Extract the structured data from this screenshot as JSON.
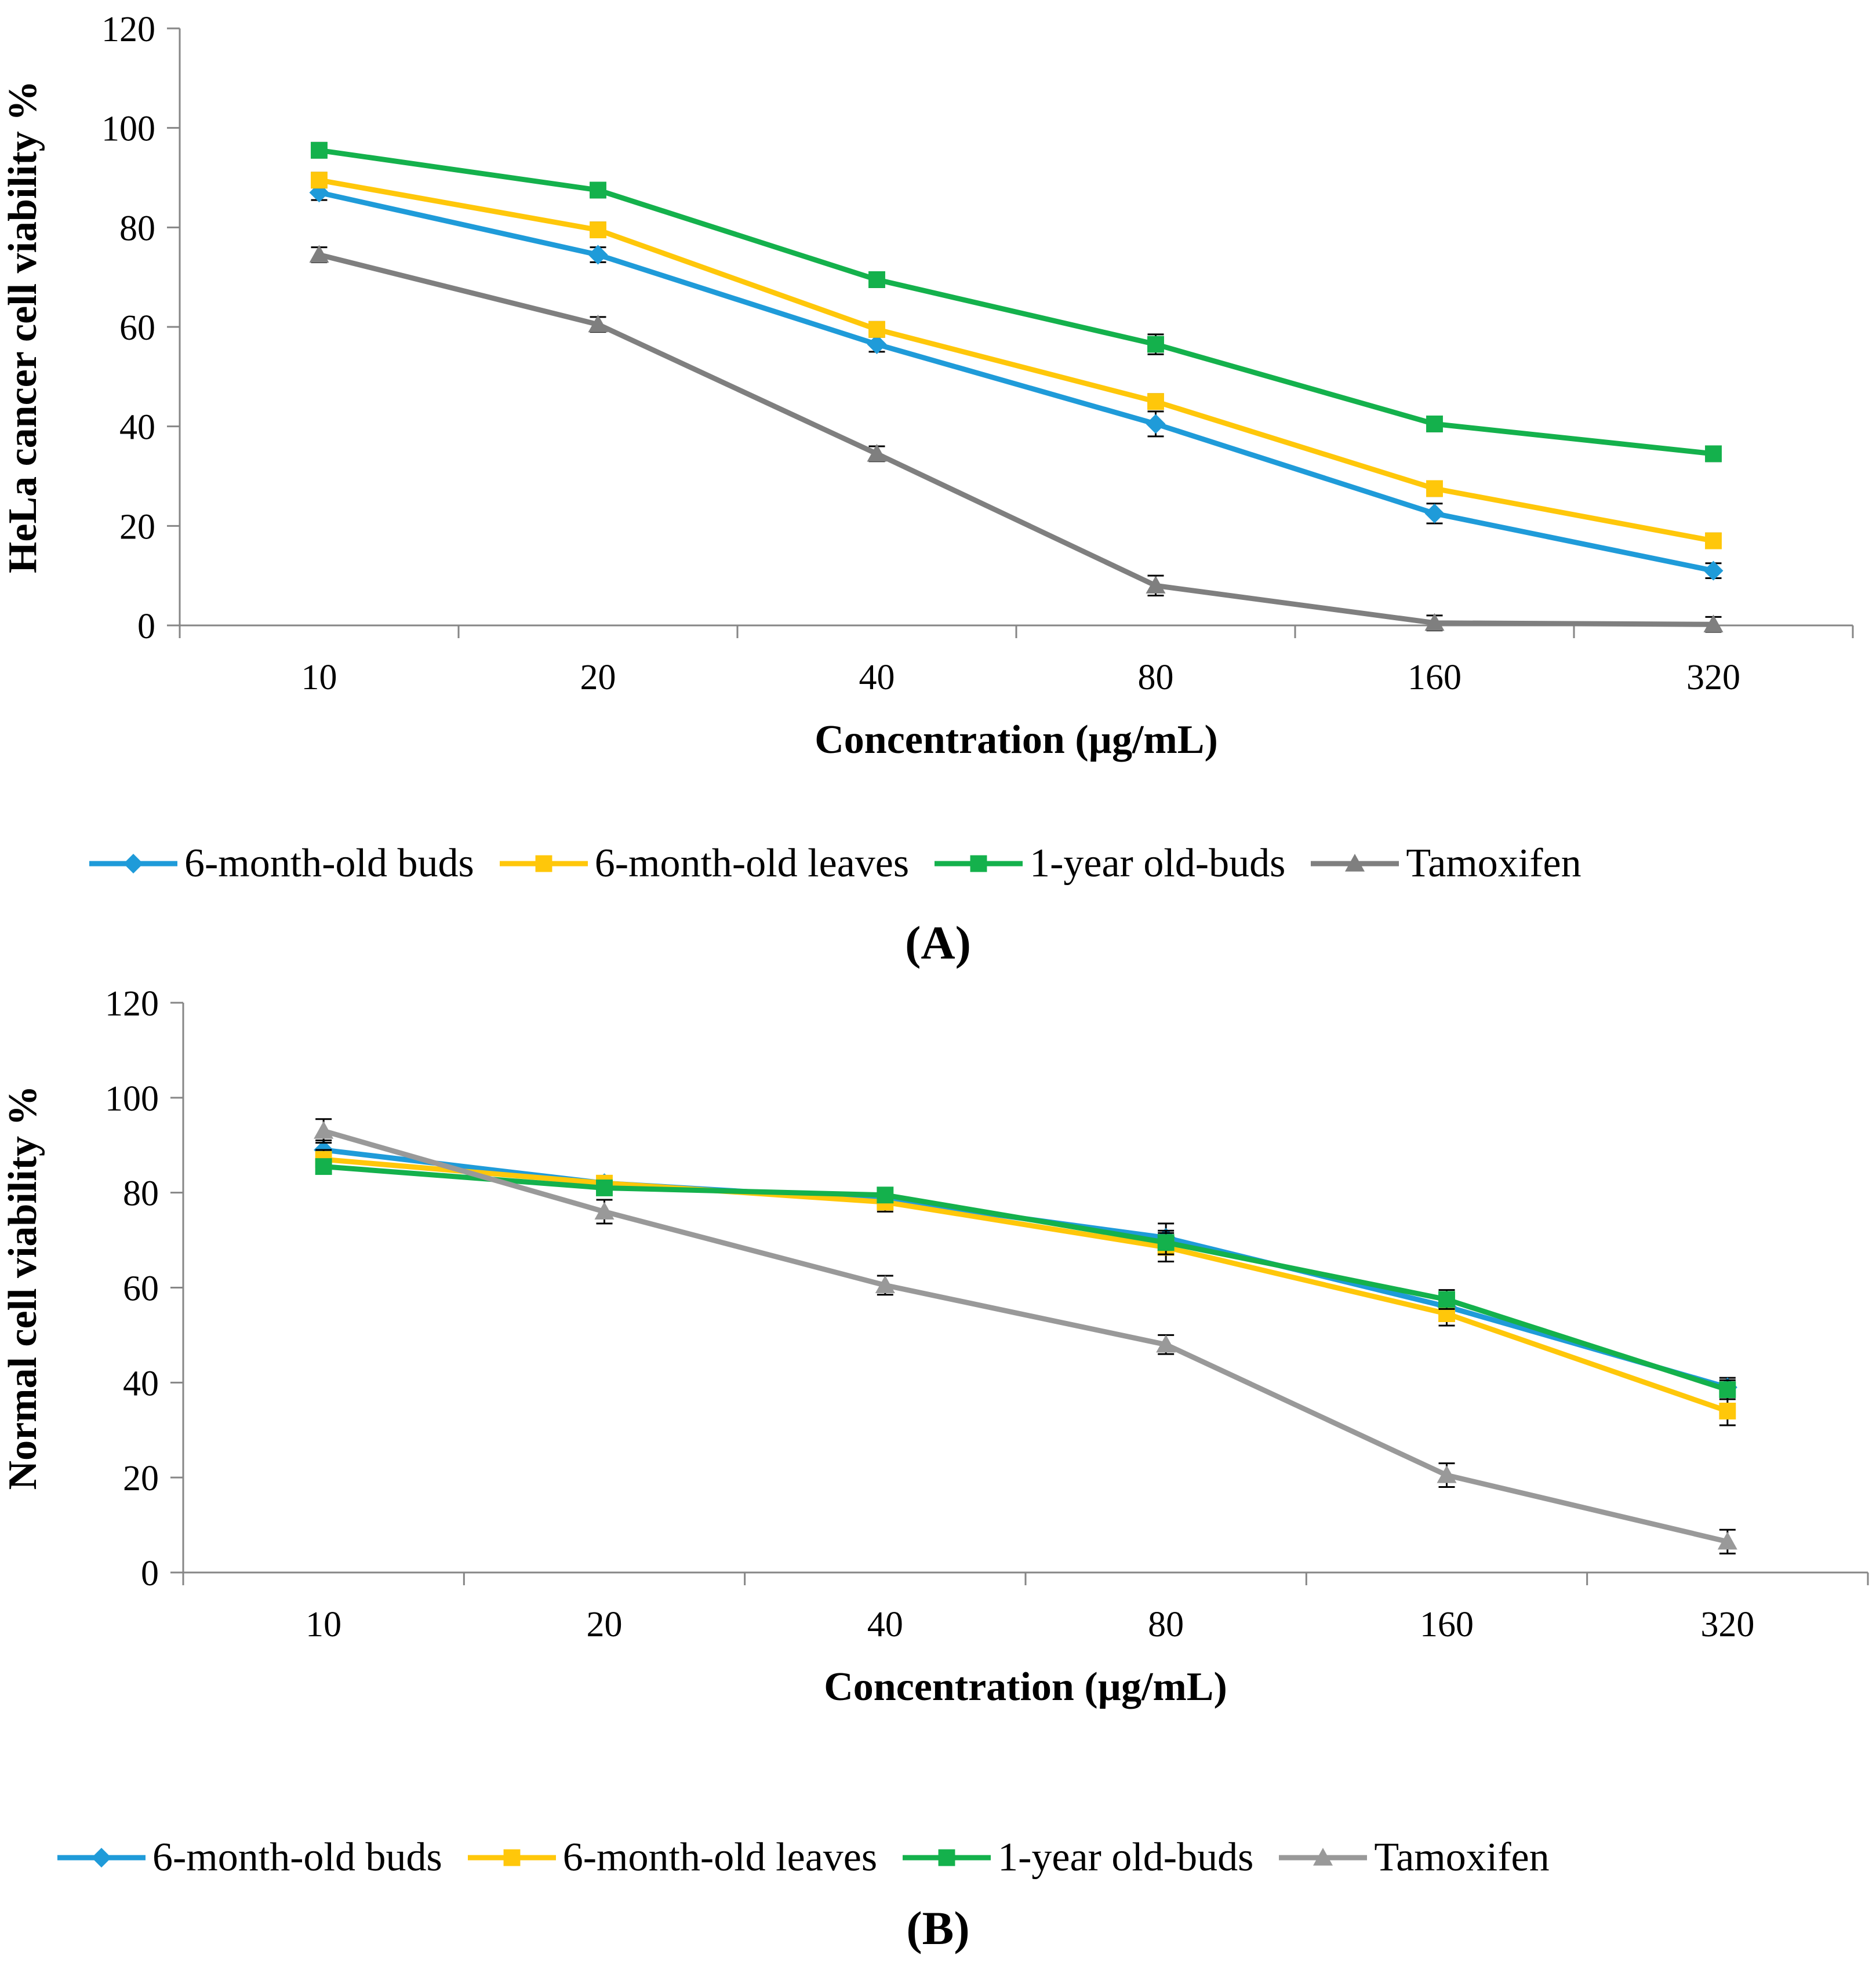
{
  "chart_data": [
    {
      "type": "line",
      "panel_label": "(A)",
      "title": "",
      "xlabel": "Concentration (µg/mL)",
      "ylabel": "HeLa cancer cell viability %",
      "categories": [
        "10",
        "20",
        "40",
        "80",
        "160",
        "320"
      ],
      "ylim": [
        0,
        120
      ],
      "yticks": [
        0,
        20,
        40,
        60,
        80,
        100,
        120
      ],
      "grid": false,
      "legend": "bottom",
      "series": [
        {
          "name": "6-month-old buds",
          "color": "#1F9BD9",
          "marker": "diamond",
          "values": [
            87,
            74.5,
            56.5,
            40.5,
            22.5,
            11
          ],
          "errors": [
            1.5,
            1.5,
            1.5,
            2.5,
            2,
            1.5
          ]
        },
        {
          "name": "6-month-old leaves",
          "color": "#FFC70A",
          "marker": "square",
          "values": [
            89.5,
            79.5,
            59.5,
            45,
            27.5,
            17
          ],
          "errors": [
            1.5,
            1.5,
            1.5,
            1.5,
            1.5,
            1.5
          ]
        },
        {
          "name": "1-year old-buds",
          "color": "#14B14C",
          "marker": "square",
          "values": [
            95.5,
            87.5,
            69.5,
            56.5,
            40.5,
            34.5
          ],
          "errors": [
            1.5,
            1.5,
            1.5,
            2,
            1.5,
            1.5
          ]
        },
        {
          "name": "Tamoxifen",
          "color": "#7F7F7F",
          "marker": "triangle",
          "values": [
            74.5,
            60.5,
            34.5,
            8,
            0.5,
            0.2
          ],
          "errors": [
            1.5,
            1.5,
            1.5,
            2,
            1.5,
            1.5
          ]
        }
      ]
    },
    {
      "type": "line",
      "panel_label": "(B)",
      "title": "",
      "xlabel": "Concentration (µg/mL)",
      "ylabel": "Normal cell viability %",
      "categories": [
        "10",
        "20",
        "40",
        "80",
        "160",
        "320"
      ],
      "ylim": [
        0,
        120
      ],
      "yticks": [
        0,
        20,
        40,
        60,
        80,
        100,
        120
      ],
      "grid": false,
      "legend": "bottom",
      "series": [
        {
          "name": "6-month-old buds",
          "color": "#1F9BD9",
          "marker": "diamond",
          "values": [
            89,
            82,
            78.5,
            70.5,
            56,
            39
          ],
          "errors": [
            2,
            1.5,
            2,
            3,
            2.5,
            2
          ]
        },
        {
          "name": "6-month-old leaves",
          "color": "#FFC70A",
          "marker": "square",
          "values": [
            87,
            82,
            78,
            68.5,
            54.5,
            34
          ],
          "errors": [
            2,
            1.5,
            2,
            3,
            2.5,
            3
          ]
        },
        {
          "name": "1-year old-buds",
          "color": "#14B14C",
          "marker": "square",
          "values": [
            85.5,
            81,
            79.5,
            69.5,
            57.5,
            38.5
          ],
          "errors": [
            1.5,
            1.5,
            1.5,
            2.5,
            2,
            2
          ]
        },
        {
          "name": "Tamoxifen",
          "color": "#999999",
          "marker": "triangle",
          "values": [
            93,
            76,
            60.5,
            48,
            20.5,
            6.5
          ],
          "errors": [
            2.5,
            2.5,
            2,
            2,
            2.5,
            2.5
          ]
        }
      ]
    }
  ]
}
